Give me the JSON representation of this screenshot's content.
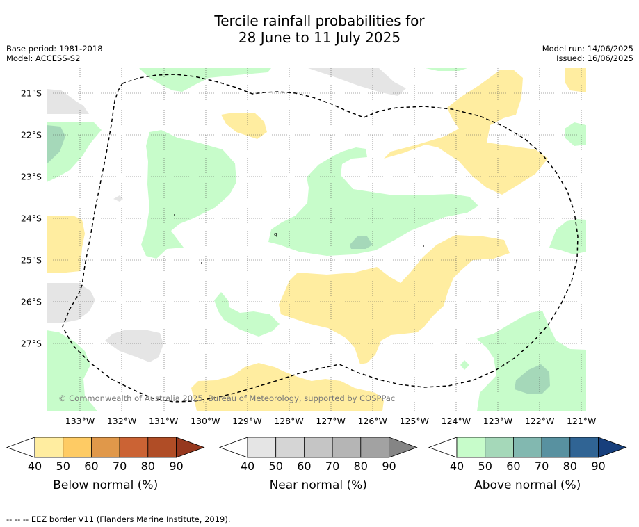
{
  "title_line1": "Tercile rainfall probabilities for",
  "title_line2": "28 June to 11 July 2025",
  "base_period": "Base period: 1981-2018",
  "model": "Model: ACCESS-S2",
  "model_run": "Model run: 14/06/2025",
  "issued": "Issued: 16/06/2025",
  "copyright": "© Commonwealth of Australia 2025, Bureau of Meteorology, supported by COSPPac",
  "footer": "--  --  -- EEZ border V11 (Flanders Marine Institute, 2019).",
  "chart_data": {
    "type": "heatmap",
    "description_type": "tercile probability map",
    "x_ticks": [
      "133°W",
      "132°W",
      "131°W",
      "130°W",
      "129°W",
      "128°W",
      "127°W",
      "126°W",
      "125°W",
      "124°W",
      "123°W",
      "122°W",
      "121°W"
    ],
    "y_ticks": [
      "21°S",
      "22°S",
      "23°S",
      "24°S",
      "25°S",
      "26°S",
      "27°S"
    ],
    "lon_range": [
      -133.8,
      -120.9
    ],
    "lat_range": [
      -28.6,
      -20.6
    ],
    "grid": true,
    "colorbars": [
      {
        "label": "Below normal (%)",
        "ticks": [
          "40",
          "50",
          "60",
          "70",
          "80",
          "90"
        ],
        "colors": [
          "#ffeda0",
          "#fecb64",
          "#e0984a",
          "#cb6334",
          "#b04d26",
          "#96381e"
        ]
      },
      {
        "label": "Near normal (%)",
        "ticks": [
          "40",
          "50",
          "60",
          "70",
          "80",
          "90"
        ],
        "colors": [
          "#e5e5e5",
          "#d5d5d5",
          "#c5c5c5",
          "#b5b5b5",
          "#a2a2a2",
          "#858585"
        ]
      },
      {
        "label": "Above normal (%)",
        "ticks": [
          "40",
          "50",
          "60",
          "70",
          "80",
          "90"
        ],
        "colors": [
          "#c7fcca",
          "#a5d8b9",
          "#82b8b0",
          "#5891a0",
          "#306494",
          "#173f7c"
        ]
      }
    ],
    "colors": {
      "below_40": "#ffeda0",
      "near_40": "#e5e5e5",
      "above_40": "#c7fcca",
      "above_50": "#a5d8b9"
    }
  }
}
